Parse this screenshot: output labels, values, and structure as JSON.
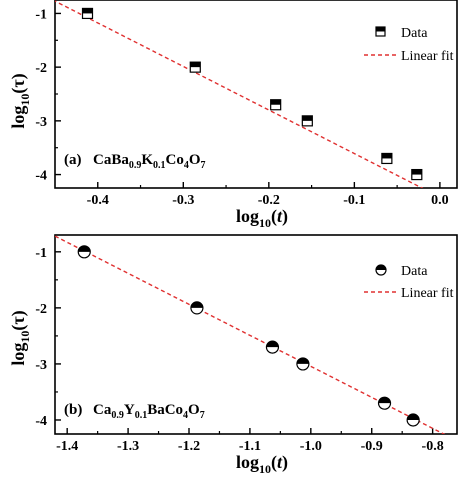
{
  "chart_data": [
    {
      "type": "scatter",
      "panel_tag": "(a)",
      "compound": {
        "a": "CaBa",
        "b": "0.9",
        "c": "K",
        "d": "0.1",
        "e": "Co",
        "f": "4",
        "g": "O",
        "h": "7"
      },
      "xlabel": {
        "base": "log",
        "sub": "10",
        "open": "(",
        "var": "t",
        "close": ")"
      },
      "ylabel": {
        "base": "log",
        "sub": "10",
        "arg": "(τ)"
      },
      "xlim": [
        -0.45,
        0.02
      ],
      "ylim": [
        -4.25,
        -0.75
      ],
      "xticks": [
        -0.4,
        -0.3,
        -0.2,
        -0.1,
        0.0
      ],
      "xtick_labels": [
        "-0.4",
        "-0.3",
        "-0.2",
        "-0.1",
        "0.0"
      ],
      "yticks": [
        -1,
        -2,
        -3,
        -4
      ],
      "ytick_labels": [
        "-1",
        "-2",
        "-3",
        "-4"
      ],
      "marker": "half-filled-square",
      "series": [
        {
          "name": "Data",
          "x": [
            -0.412,
            -0.286,
            -0.192,
            -0.155,
            -0.062,
            -0.027
          ],
          "y": [
            -1.0,
            -2.0,
            -2.7,
            -3.0,
            -3.7,
            -4.0
          ]
        },
        {
          "name": "Linear fit",
          "x": [
            -0.46,
            0.0
          ],
          "y": [
            -0.69,
            -4.42
          ]
        }
      ],
      "legend": "top-right",
      "colors": {
        "fit": "#e03030",
        "marker": "#000000"
      }
    },
    {
      "type": "scatter",
      "panel_tag": "(b)",
      "compound": {
        "a": "Ca",
        "b": "0.9",
        "c": "Y",
        "d": "0.1",
        "e": "BaCo",
        "f": "4",
        "g": "O",
        "h": "7"
      },
      "xlabel": {
        "base": "log",
        "sub": "10",
        "open": "(",
        "var": "t",
        "close": ")"
      },
      "ylabel": {
        "base": "log",
        "sub": "10",
        "arg": "(τ)"
      },
      "xlim": [
        -1.42,
        -0.76
      ],
      "ylim": [
        -4.25,
        -0.7
      ],
      "xticks": [
        -1.4,
        -1.3,
        -1.2,
        -1.1,
        -1.0,
        -0.9,
        -0.8
      ],
      "xtick_labels": [
        "-1.4",
        "-1.3",
        "-1.2",
        "-1.1",
        "-1.0",
        "-0.9",
        "-0.8"
      ],
      "yticks": [
        -1,
        -2,
        -3,
        -4
      ],
      "ytick_labels": [
        "-1",
        "-2",
        "-3",
        "-4"
      ],
      "marker": "half-filled-circle",
      "series": [
        {
          "name": "Data",
          "x": [
            -1.372,
            -1.187,
            -1.063,
            -1.013,
            -0.879,
            -0.832
          ],
          "y": [
            -1.0,
            -2.0,
            -2.7,
            -3.0,
            -3.7,
            -4.0
          ]
        },
        {
          "name": "Linear fit",
          "x": [
            -1.42,
            -0.78
          ],
          "y": [
            -0.72,
            -4.26
          ]
        }
      ],
      "legend": "top-right",
      "colors": {
        "fit": "#e03030",
        "marker": "#000000"
      }
    }
  ]
}
